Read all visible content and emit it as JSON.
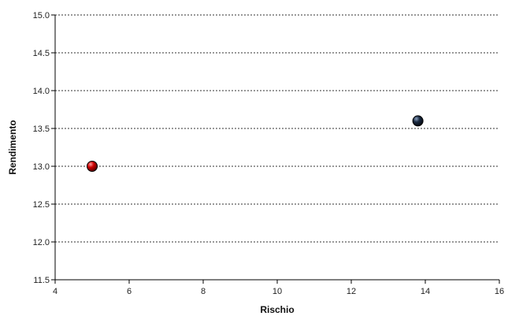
{
  "chart_data": {
    "type": "scatter",
    "title": "",
    "xlabel": "Rischio",
    "ylabel": "Rendimento",
    "xlim": [
      4,
      16
    ],
    "ylim": [
      11.5,
      15.0
    ],
    "xticks": [
      4,
      6,
      8,
      10,
      12,
      14,
      16
    ],
    "yticks": [
      11.5,
      12.0,
      12.5,
      13.0,
      13.5,
      14.0,
      14.5,
      15.0
    ],
    "grid": "horizontal-dotted",
    "legend": "none",
    "points": [
      {
        "x": 5.0,
        "y": 13.0,
        "color": "#cc0000"
      },
      {
        "x": 13.8,
        "y": 13.6,
        "color": "#1a2a40"
      }
    ]
  }
}
